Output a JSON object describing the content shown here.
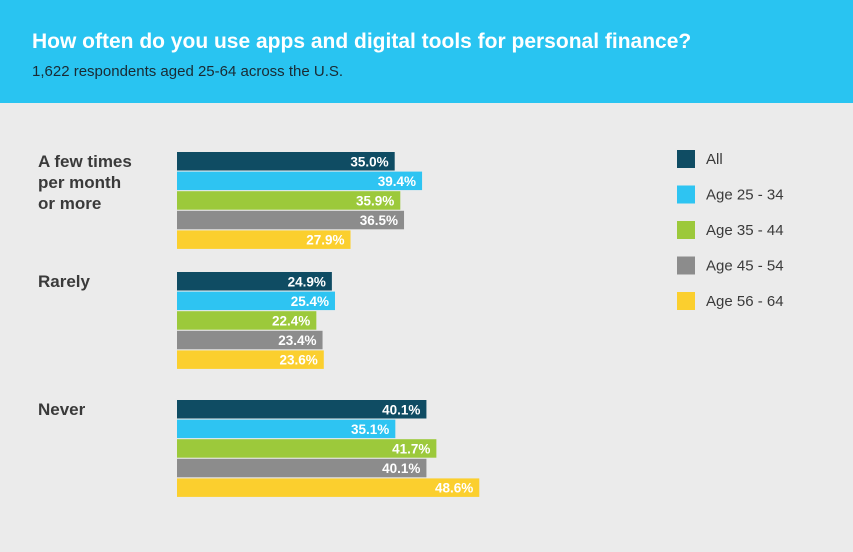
{
  "header": {
    "title": "How often do you use apps and digital tools for personal finance?",
    "subtitle": "1,622 respondents aged 25-64 across the U.S."
  },
  "colors": {
    "header_bg": "#29c4f1",
    "background": "#ebebeb",
    "All": "#0f4c63",
    "Age 25 - 34": "#2ec4f2",
    "Age 35 - 44": "#9cc93b",
    "Age 45 - 54": "#8c8c8c",
    "Age 56 - 64": "#fbcf2e"
  },
  "chart_data": {
    "type": "bar",
    "orientation": "horizontal",
    "categories": [
      "A few times\nper month\nor more",
      "Rarely",
      "Never"
    ],
    "series": [
      {
        "name": "All",
        "values": [
          35.0,
          24.9,
          40.1
        ]
      },
      {
        "name": "Age 25 - 34",
        "values": [
          39.4,
          25.4,
          35.1
        ]
      },
      {
        "name": "Age 35 - 44",
        "values": [
          35.9,
          22.4,
          41.7
        ]
      },
      {
        "name": "Age 45 - 54",
        "values": [
          36.5,
          23.4,
          40.1
        ]
      },
      {
        "name": "Age 56 - 64",
        "values": [
          27.9,
          23.6,
          48.6
        ]
      }
    ],
    "value_labels": [
      [
        "35.0%",
        "24.9%",
        "40.1%"
      ],
      [
        "39.4%",
        "25.4%",
        "35.1%"
      ],
      [
        "35.9%",
        "22.4%",
        "41.7%"
      ],
      [
        "36.5%",
        "23.4%",
        "40.1%"
      ],
      [
        "27.9%",
        "23.6%",
        "48.6%"
      ]
    ],
    "unit": "%",
    "xlim": [
      0,
      100
    ],
    "grid": false,
    "legend_position": "right"
  }
}
